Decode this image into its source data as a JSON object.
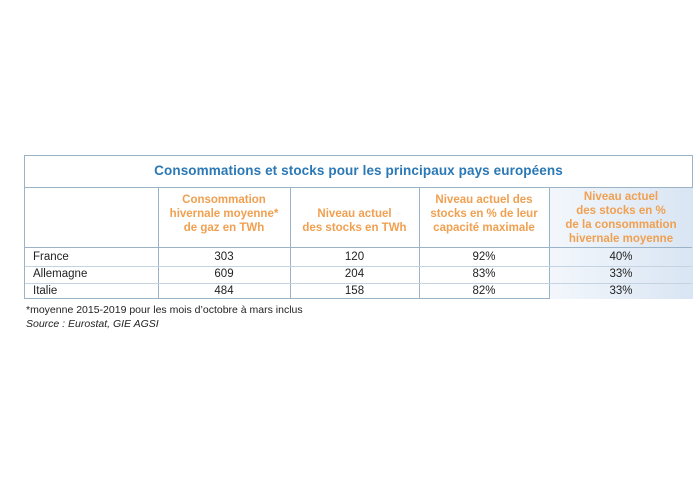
{
  "table": {
    "title": "Consommations et stocks pour les principaux pays européens",
    "headers": [
      "",
      "Consommation\nhivernale moyenne*\nde gaz en TWh",
      "Niveau actuel\ndes stocks en TWh",
      "Niveau actuel des\nstocks en % de leur\ncapacité maximale",
      "Niveau actuel\ndes stocks en %\nde la consommation\nhivernale moyenne"
    ],
    "rows": [
      [
        "France",
        "303",
        "120",
        "92%",
        "40%"
      ],
      [
        "Allemagne",
        "609",
        "204",
        "83%",
        "33%"
      ],
      [
        "Italie",
        "484",
        "158",
        "82%",
        "33%"
      ]
    ]
  },
  "footnote": "*moyenne 2015-2019 pour les mois d’octobre à mars inclus",
  "source": "Source : Eurostat, GIE AGSI",
  "colors": {
    "title": "#2a78b5",
    "header_text": "#f0a050",
    "border": "#9bb3c9",
    "shade_light": "#f3f7fc",
    "shade_dark": "#d9e5f3"
  }
}
